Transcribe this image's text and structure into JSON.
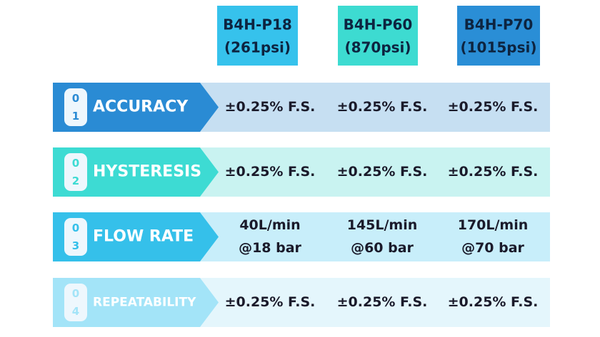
{
  "columns": [
    {
      "model": "B4H-P18",
      "pressure": "(261psi)"
    },
    {
      "model": "B4H-P60",
      "pressure": "(870psi)"
    },
    {
      "model": "B4H-P70",
      "pressure": "(1015psi)"
    }
  ],
  "rows": [
    {
      "number": [
        "0",
        "1"
      ],
      "label": "ACCURACY",
      "cells": [
        [
          "±0.25% F.S."
        ],
        [
          "±0.25% F.S."
        ],
        [
          "±0.25% F.S."
        ]
      ]
    },
    {
      "number": [
        "0",
        "2"
      ],
      "label": "HYSTERESIS",
      "cells": [
        [
          "±0.25% F.S."
        ],
        [
          "±0.25% F.S."
        ],
        [
          "±0.25% F.S."
        ]
      ]
    },
    {
      "number": [
        "0",
        "3"
      ],
      "label": "FLOW RATE",
      "cells": [
        [
          "40L/min",
          "@18 bar"
        ],
        [
          "145L/min",
          "@60 bar"
        ],
        [
          "170L/min",
          "@70 bar"
        ]
      ]
    },
    {
      "number": [
        "0",
        "4"
      ],
      "label": "REPEATABILITY",
      "cells": [
        [
          "±0.25% F.S."
        ],
        [
          "±0.25% F.S."
        ],
        [
          "±0.25% F.S."
        ]
      ]
    }
  ]
}
